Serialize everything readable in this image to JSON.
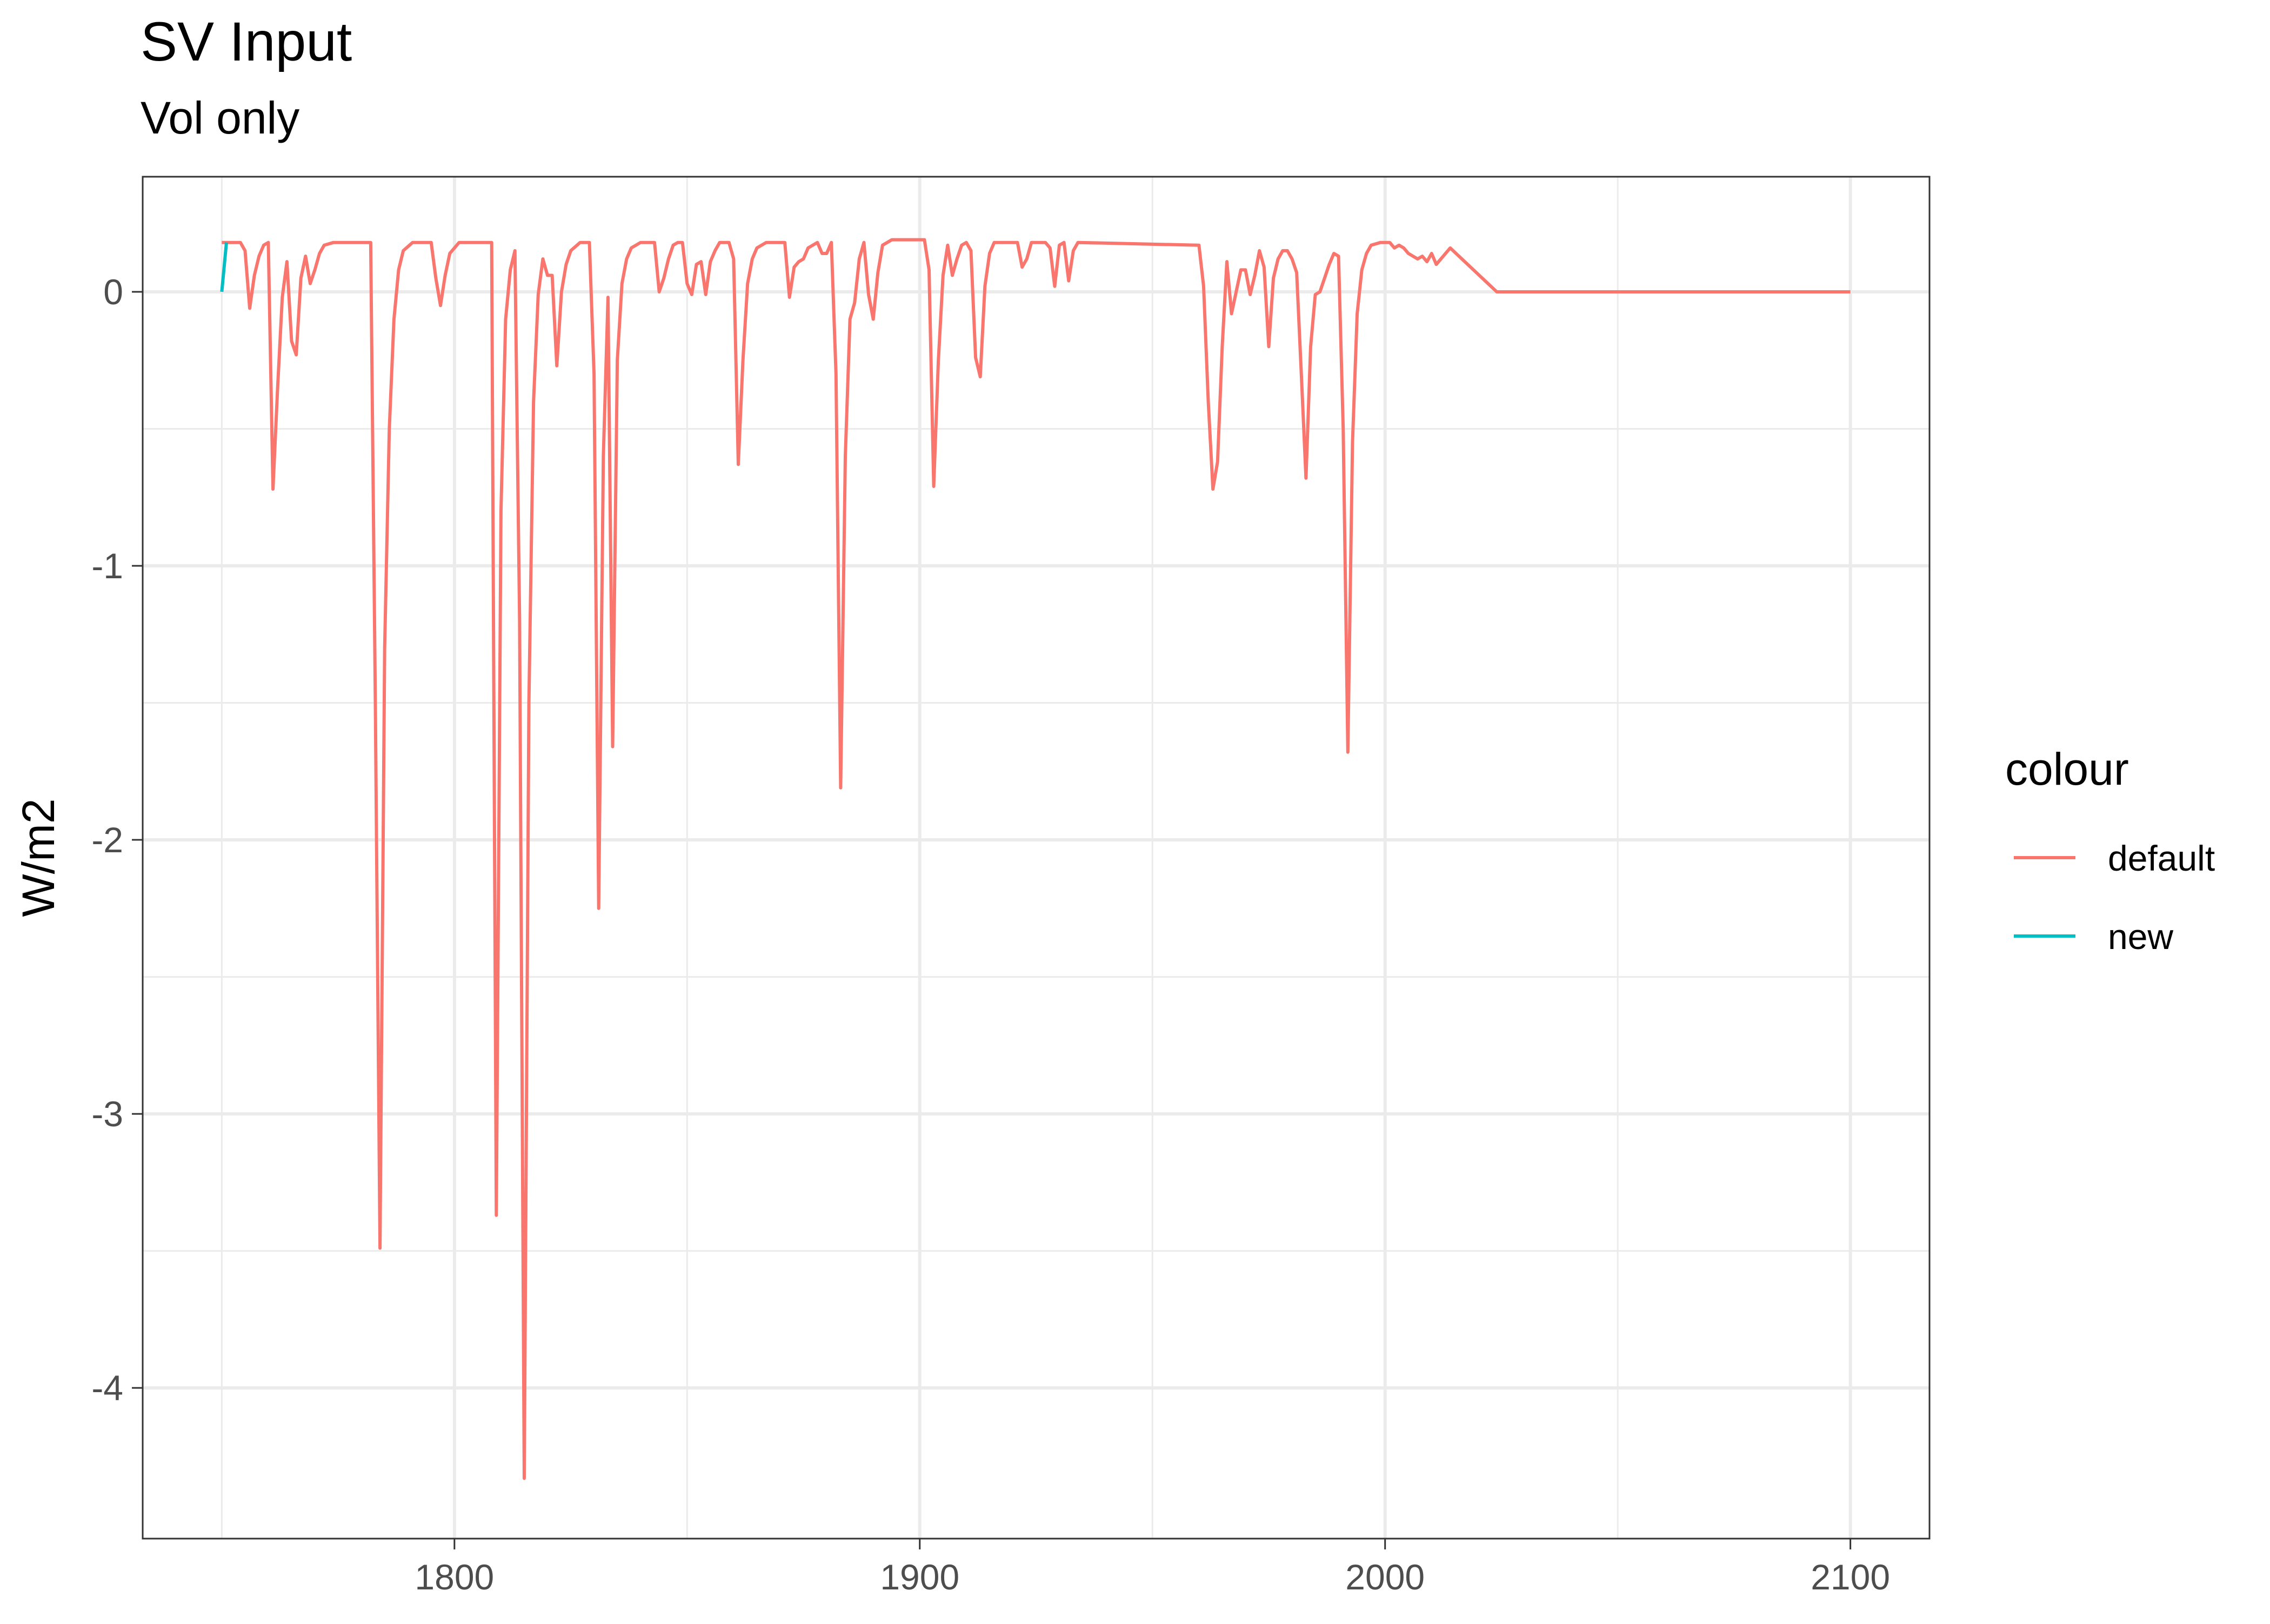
{
  "chart_data": {
    "type": "line",
    "title": "SV Input",
    "subtitle": "Vol only",
    "xlabel": "",
    "ylabel": "W/m2",
    "xlim": [
      1733,
      2117
    ],
    "ylim": [
      -4.55,
      0.42
    ],
    "x_ticks": [
      1800,
      1900,
      2000,
      2100
    ],
    "x_tick_labels": [
      "1800",
      "1900",
      "2000",
      "2100"
    ],
    "x_minor_ticks": [
      1750,
      1850,
      1950,
      2050
    ],
    "y_ticks": [
      0,
      -1,
      -2,
      -3,
      -4
    ],
    "y_tick_labels": [
      "0",
      "-1",
      "-2",
      "-3",
      "-4"
    ],
    "y_minor_ticks": [
      -0.5,
      -1.5,
      -2.5,
      -3.5
    ],
    "grid": true,
    "legend": {
      "title": "colour",
      "position": "right"
    },
    "series": [
      {
        "name": "default",
        "color": "#F8766D",
        "points": [
          [
            1750,
            0.18
          ],
          [
            1754,
            0.18
          ],
          [
            1755,
            0.15
          ],
          [
            1756,
            -0.06
          ],
          [
            1757,
            0.06
          ],
          [
            1758,
            0.13
          ],
          [
            1759,
            0.17
          ],
          [
            1760,
            0.18
          ],
          [
            1761,
            -0.72
          ],
          [
            1762,
            -0.35
          ],
          [
            1763,
            -0.02
          ],
          [
            1764,
            0.11
          ],
          [
            1765,
            -0.18
          ],
          [
            1766,
            -0.23
          ],
          [
            1767,
            0.05
          ],
          [
            1768,
            0.13
          ],
          [
            1769,
            0.03
          ],
          [
            1770,
            0.08
          ],
          [
            1771,
            0.14
          ],
          [
            1772,
            0.17
          ],
          [
            1774,
            0.18
          ],
          [
            1782,
            0.18
          ],
          [
            1783,
            -1.5
          ],
          [
            1784,
            -3.49
          ],
          [
            1785,
            -1.3
          ],
          [
            1786,
            -0.5
          ],
          [
            1787,
            -0.1
          ],
          [
            1788,
            0.08
          ],
          [
            1789,
            0.15
          ],
          [
            1791,
            0.18
          ],
          [
            1795,
            0.18
          ],
          [
            1796,
            0.05
          ],
          [
            1797,
            -0.05
          ],
          [
            1798,
            0.06
          ],
          [
            1799,
            0.14
          ],
          [
            1801,
            0.18
          ],
          [
            1808,
            0.18
          ],
          [
            1809,
            -3.37
          ],
          [
            1810,
            -0.8
          ],
          [
            1811,
            -0.1
          ],
          [
            1812,
            0.08
          ],
          [
            1813,
            0.15
          ],
          [
            1814,
            -1.2
          ],
          [
            1815,
            -4.33
          ],
          [
            1816,
            -1.5
          ],
          [
            1817,
            -0.4
          ],
          [
            1818,
            -0.01
          ],
          [
            1819,
            0.12
          ],
          [
            1820,
            0.06
          ],
          [
            1821,
            0.06
          ],
          [
            1822,
            -0.27
          ],
          [
            1823,
            0.0
          ],
          [
            1824,
            0.1
          ],
          [
            1825,
            0.15
          ],
          [
            1827,
            0.18
          ],
          [
            1829,
            0.18
          ],
          [
            1830,
            -0.3
          ],
          [
            1831,
            -2.25
          ],
          [
            1832,
            -0.6
          ],
          [
            1833,
            -0.02
          ],
          [
            1834,
            -1.66
          ],
          [
            1835,
            -0.25
          ],
          [
            1836,
            0.03
          ],
          [
            1837,
            0.12
          ],
          [
            1838,
            0.16
          ],
          [
            1840,
            0.18
          ],
          [
            1843,
            0.18
          ],
          [
            1844,
            0.0
          ],
          [
            1845,
            0.05
          ],
          [
            1846,
            0.12
          ],
          [
            1847,
            0.17
          ],
          [
            1848,
            0.18
          ],
          [
            1849,
            0.18
          ],
          [
            1850,
            0.03
          ],
          [
            1851,
            -0.01
          ],
          [
            1852,
            0.1
          ],
          [
            1853,
            0.11
          ],
          [
            1854,
            -0.01
          ],
          [
            1855,
            0.11
          ],
          [
            1856,
            0.15
          ],
          [
            1857,
            0.18
          ],
          [
            1859,
            0.18
          ],
          [
            1860,
            0.12
          ],
          [
            1861,
            -0.63
          ],
          [
            1862,
            -0.25
          ],
          [
            1863,
            0.03
          ],
          [
            1864,
            0.12
          ],
          [
            1865,
            0.16
          ],
          [
            1867,
            0.18
          ],
          [
            1871,
            0.18
          ],
          [
            1872,
            -0.02
          ],
          [
            1873,
            0.09
          ],
          [
            1874,
            0.11
          ],
          [
            1875,
            0.12
          ],
          [
            1876,
            0.16
          ],
          [
            1878,
            0.18
          ],
          [
            1879,
            0.14
          ],
          [
            1880,
            0.14
          ],
          [
            1881,
            0.18
          ],
          [
            1882,
            -0.3
          ],
          [
            1883,
            -1.81
          ],
          [
            1884,
            -0.6
          ],
          [
            1885,
            -0.1
          ],
          [
            1886,
            -0.04
          ],
          [
            1887,
            0.12
          ],
          [
            1888,
            0.18
          ],
          [
            1889,
            -0.01
          ],
          [
            1890,
            -0.1
          ],
          [
            1891,
            0.07
          ],
          [
            1892,
            0.17
          ],
          [
            1894,
            0.19
          ],
          [
            1901,
            0.19
          ],
          [
            1902,
            0.08
          ],
          [
            1903,
            -0.71
          ],
          [
            1904,
            -0.25
          ],
          [
            1905,
            0.06
          ],
          [
            1906,
            0.17
          ],
          [
            1907,
            0.06
          ],
          [
            1908,
            0.12
          ],
          [
            1909,
            0.17
          ],
          [
            1910,
            0.18
          ],
          [
            1911,
            0.15
          ],
          [
            1912,
            -0.24
          ],
          [
            1913,
            -0.31
          ],
          [
            1914,
            0.02
          ],
          [
            1915,
            0.14
          ],
          [
            1916,
            0.18
          ],
          [
            1921,
            0.18
          ],
          [
            1922,
            0.09
          ],
          [
            1923,
            0.12
          ],
          [
            1924,
            0.18
          ],
          [
            1927,
            0.18
          ],
          [
            1928,
            0.16
          ],
          [
            1929,
            0.02
          ],
          [
            1930,
            0.17
          ],
          [
            1931,
            0.18
          ],
          [
            1932,
            0.04
          ],
          [
            1933,
            0.15
          ],
          [
            1934,
            0.18
          ],
          [
            1960,
            0.17
          ],
          [
            1961,
            0.02
          ],
          [
            1962,
            -0.4
          ],
          [
            1963,
            -0.72
          ],
          [
            1964,
            -0.62
          ],
          [
            1965,
            -0.2
          ],
          [
            1966,
            0.11
          ],
          [
            1967,
            -0.08
          ],
          [
            1968,
            0.0
          ],
          [
            1969,
            0.08
          ],
          [
            1970,
            0.08
          ],
          [
            1971,
            -0.01
          ],
          [
            1972,
            0.06
          ],
          [
            1973,
            0.15
          ],
          [
            1974,
            0.09
          ],
          [
            1975,
            -0.2
          ],
          [
            1976,
            0.05
          ],
          [
            1977,
            0.12
          ],
          [
            1978,
            0.15
          ],
          [
            1979,
            0.15
          ],
          [
            1980,
            0.12
          ],
          [
            1981,
            0.07
          ],
          [
            1982,
            -0.3
          ],
          [
            1983,
            -0.68
          ],
          [
            1984,
            -0.2
          ],
          [
            1985,
            -0.01
          ],
          [
            1986,
            0.0
          ],
          [
            1987,
            0.05
          ],
          [
            1988,
            0.1
          ],
          [
            1989,
            0.14
          ],
          [
            1990,
            0.13
          ],
          [
            1991,
            -0.5
          ],
          [
            1992,
            -1.68
          ],
          [
            1993,
            -0.55
          ],
          [
            1994,
            -0.08
          ],
          [
            1995,
            0.08
          ],
          [
            1996,
            0.14
          ],
          [
            1997,
            0.17
          ],
          [
            1999,
            0.18
          ],
          [
            2001,
            0.18
          ],
          [
            2002,
            0.16
          ],
          [
            2003,
            0.17
          ],
          [
            2004,
            0.16
          ],
          [
            2005,
            0.14
          ],
          [
            2006,
            0.13
          ],
          [
            2007,
            0.12
          ],
          [
            2008,
            0.13
          ],
          [
            2009,
            0.11
          ],
          [
            2010,
            0.14
          ],
          [
            2011,
            0.1
          ],
          [
            2012,
            0.12
          ],
          [
            2013,
            0.14
          ],
          [
            2014,
            0.16
          ],
          [
            2024,
            0.0
          ],
          [
            2100,
            0.0
          ]
        ]
      },
      {
        "name": "new",
        "color": "#00BFC4",
        "points": [
          [
            1750,
            0.0
          ],
          [
            1751,
            0.18
          ]
        ]
      }
    ]
  }
}
